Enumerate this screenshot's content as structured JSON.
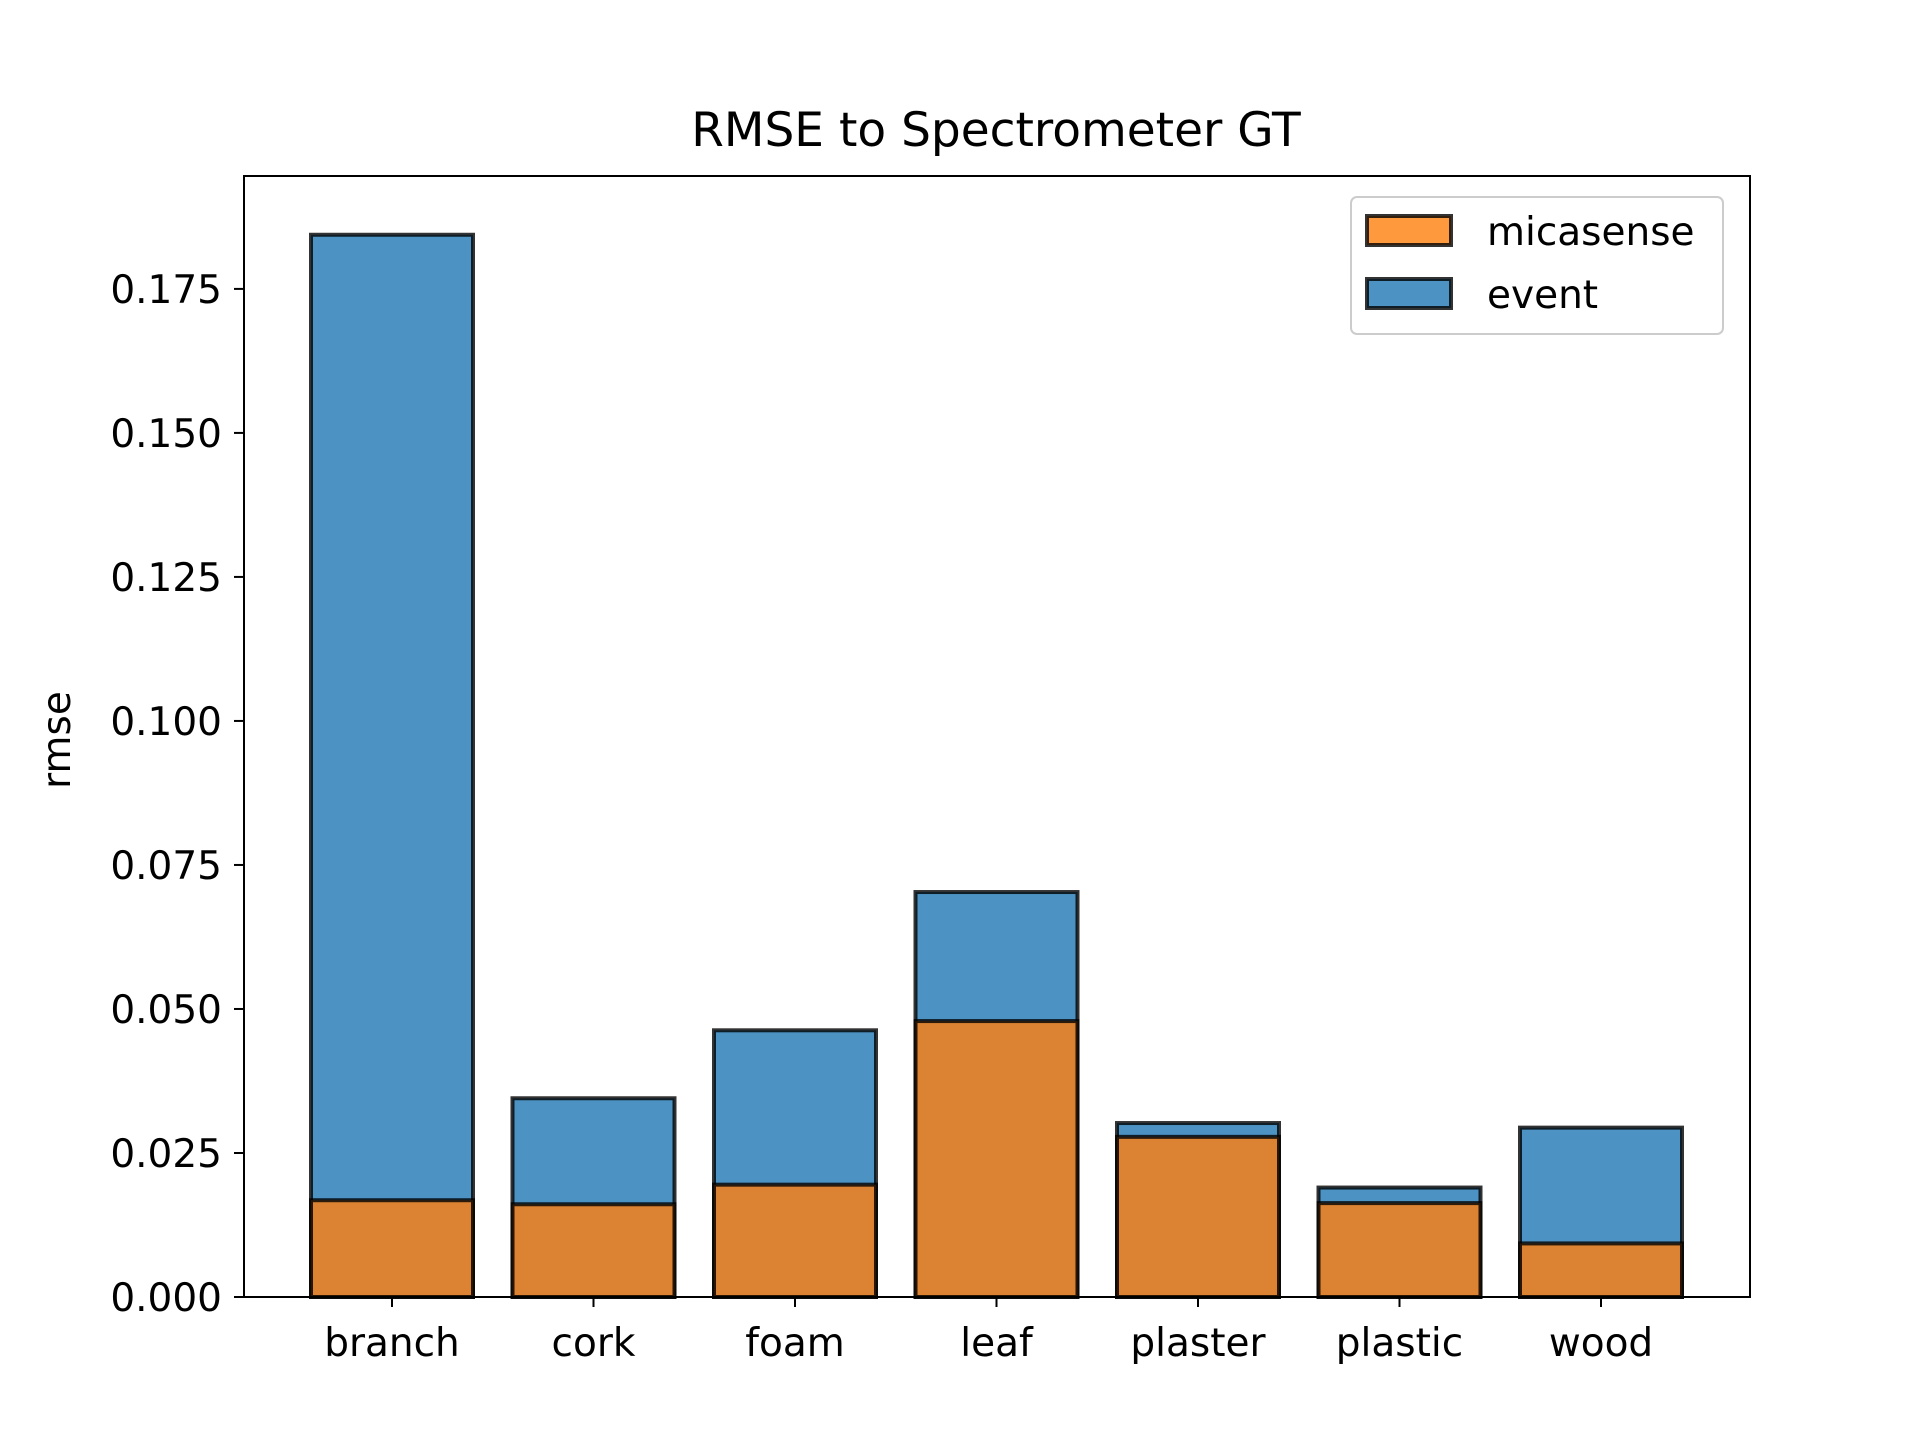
{
  "chart_data": {
    "type": "bar",
    "title": "RMSE to Spectrometer GT",
    "xlabel": "",
    "ylabel": "rmse",
    "categories": [
      "branch",
      "cork",
      "foam",
      "leaf",
      "plaster",
      "plastic",
      "wood"
    ],
    "series": [
      {
        "name": "event",
        "color": "#1f77b4",
        "values": [
          0.1844,
          0.0345,
          0.0463,
          0.0703,
          0.0302,
          0.019,
          0.0294
        ]
      },
      {
        "name": "micasense",
        "color": "#ff7f0e",
        "values": [
          0.0168,
          0.0161,
          0.0195,
          0.0479,
          0.0278,
          0.0163,
          0.0093
        ]
      }
    ],
    "legend_order": [
      "micasense",
      "event"
    ],
    "legend_position": "top-right",
    "ylim": [
      0,
      0.1946
    ],
    "yticks": [
      "0.000",
      "0.025",
      "0.050",
      "0.075",
      "0.100",
      "0.125",
      "0.150",
      "0.175"
    ],
    "grid": false
  }
}
